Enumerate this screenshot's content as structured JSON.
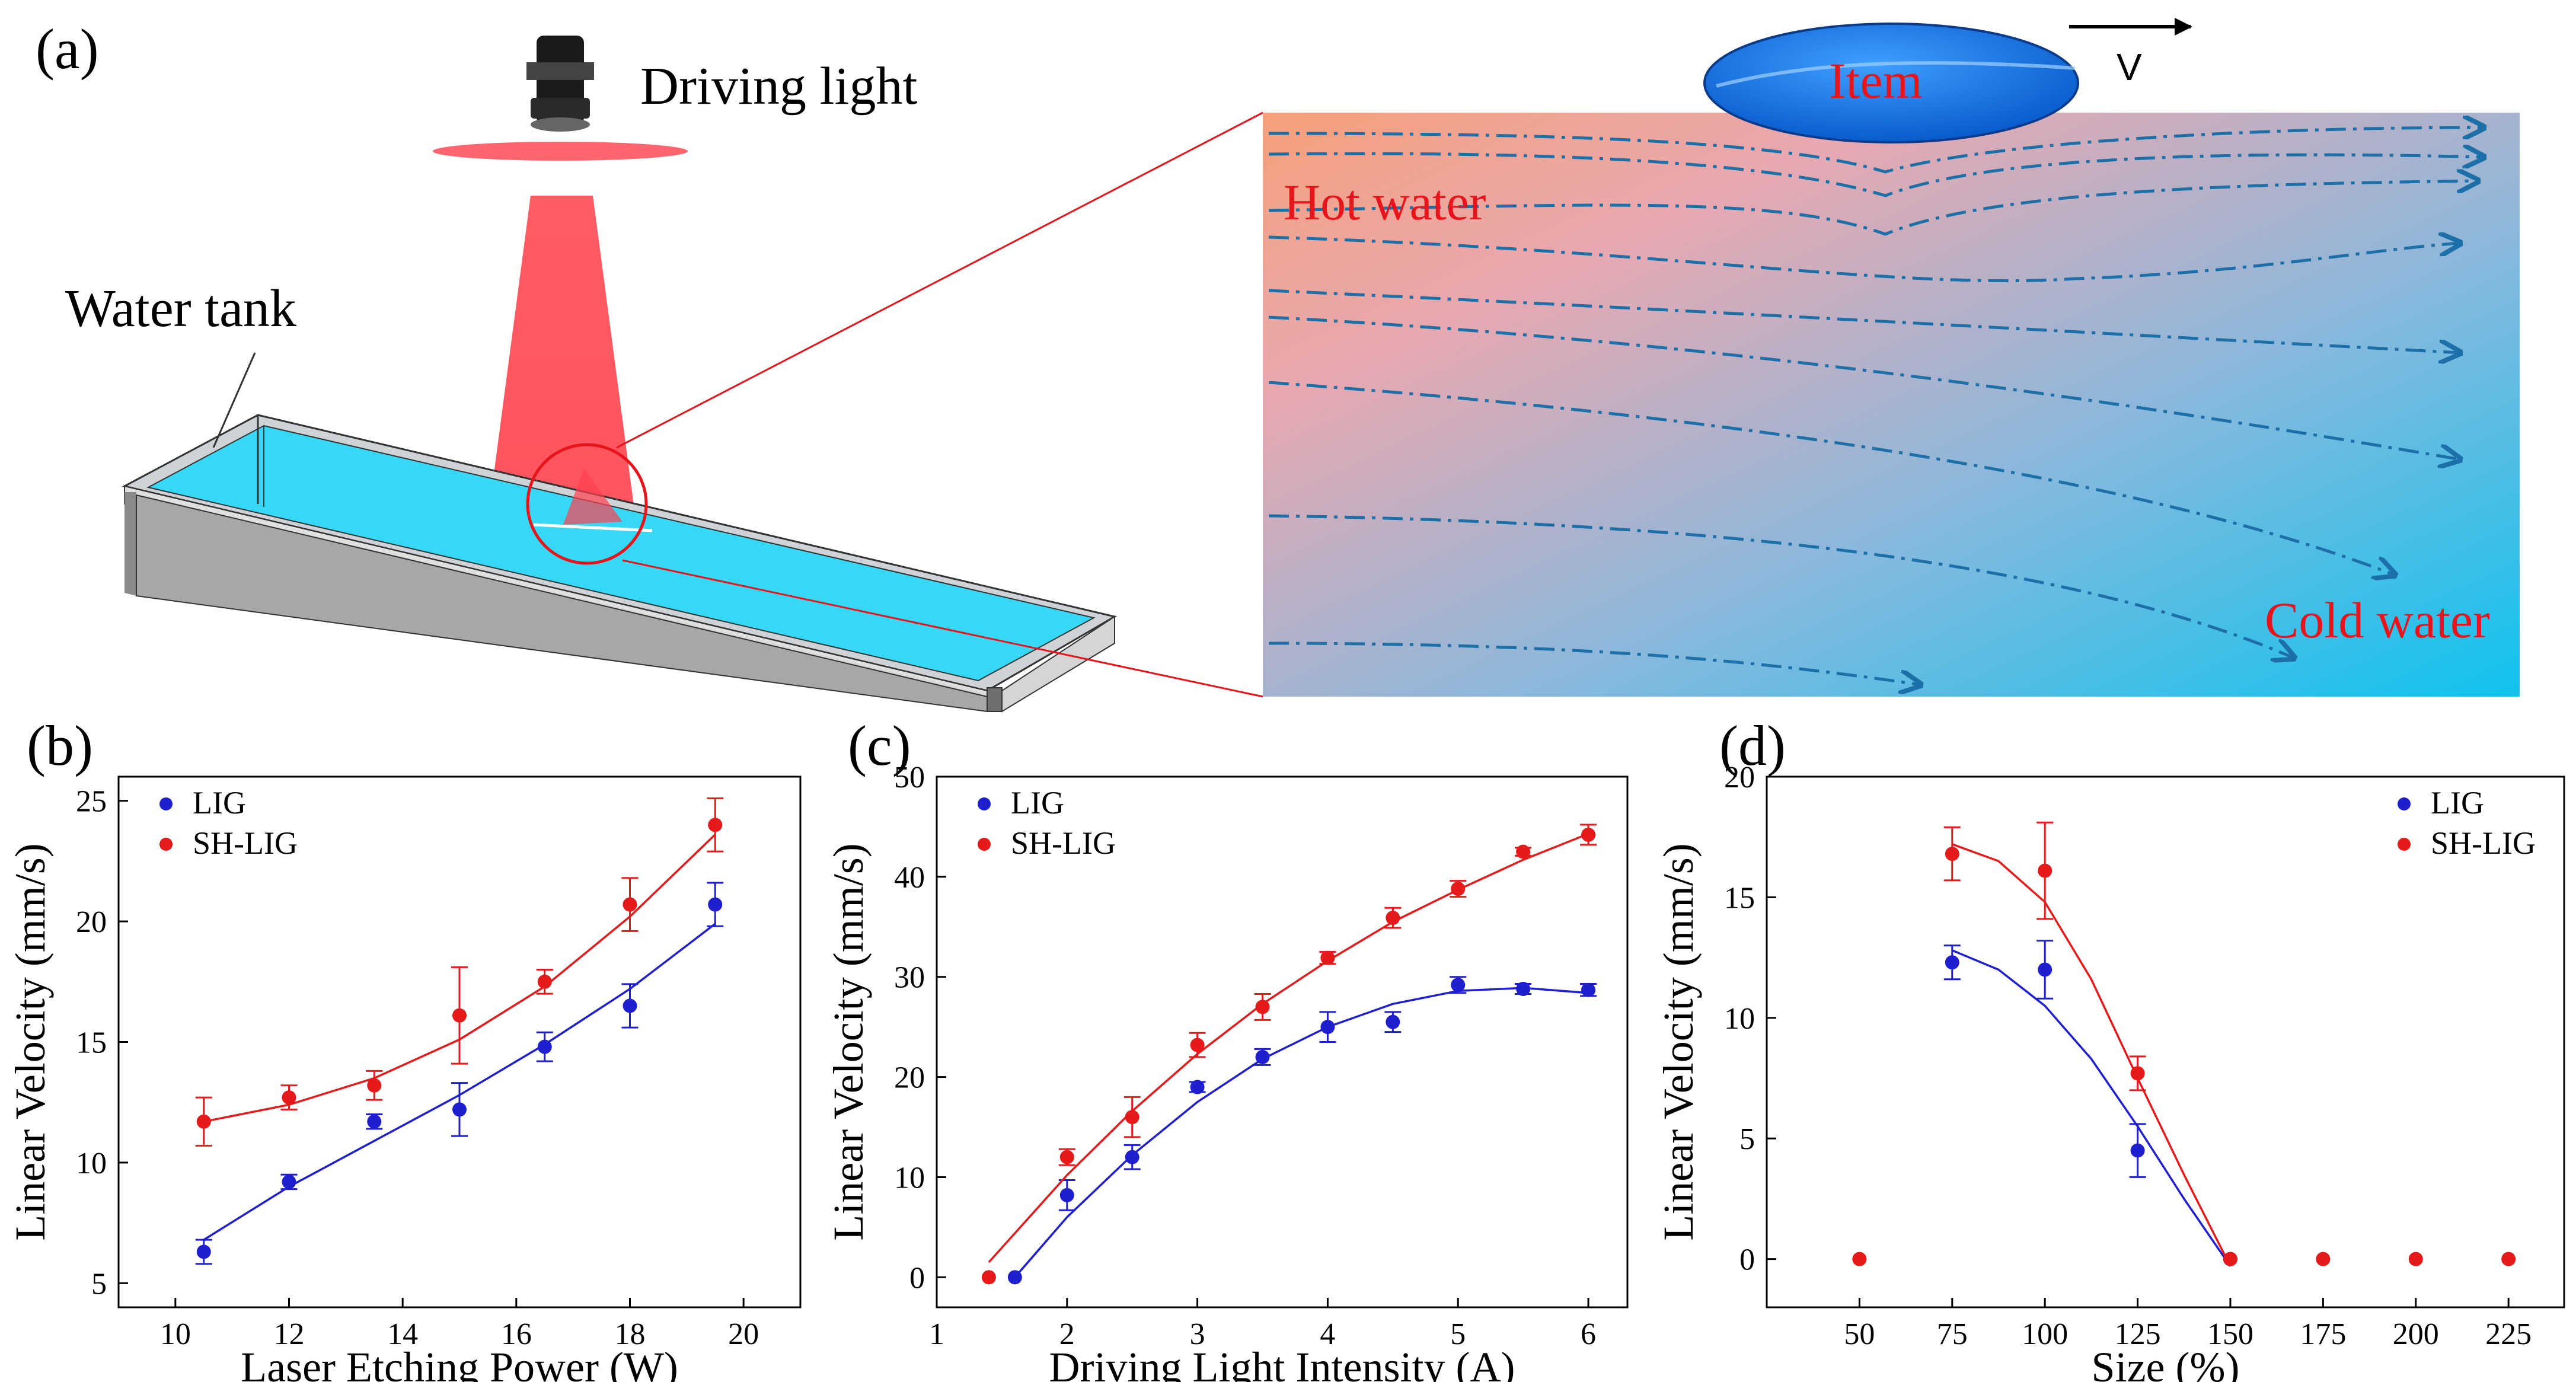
{
  "panel_a": {
    "label": "(a)",
    "driving_light": "Driving light",
    "water_tank": "Water tank",
    "item": "Item",
    "velocity": "V",
    "hot_water": "Hot water",
    "cold_water": "Cold water"
  },
  "chart_data": [
    {
      "panel": "(b)",
      "type": "scatter",
      "title": "",
      "xlabel": "Laser Etching Power (W)",
      "ylabel": "Linear Velocity (mm/s)",
      "xlim": [
        9,
        21
      ],
      "ylim": [
        4,
        26
      ],
      "xticks": [
        10,
        12,
        14,
        16,
        18,
        20
      ],
      "yticks": [
        5,
        10,
        15,
        20,
        25
      ],
      "legend_position": "top-left",
      "series": [
        {
          "name": "LIG",
          "color": "#1f1fd0",
          "x": [
            10.5,
            12,
            13.5,
            15,
            16.5,
            18,
            19.5
          ],
          "y": [
            6.3,
            9.2,
            11.7,
            12.2,
            14.8,
            16.5,
            20.7
          ],
          "err": [
            0.5,
            0.3,
            0.3,
            1.1,
            0.6,
            0.9,
            0.9
          ],
          "fit": [
            [
              10.5,
              6.8
            ],
            [
              12,
              9.0
            ],
            [
              13.5,
              10.9
            ],
            [
              15,
              12.8
            ],
            [
              16.5,
              14.9
            ],
            [
              18,
              17.2
            ],
            [
              19.5,
              19.9
            ]
          ]
        },
        {
          "name": "SH-LIG",
          "color": "#e51a1a",
          "x": [
            10.5,
            12,
            13.5,
            15,
            16.5,
            18,
            19.5
          ],
          "y": [
            11.7,
            12.7,
            13.2,
            16.1,
            17.5,
            20.7,
            24.0
          ],
          "err": [
            1.0,
            0.5,
            0.6,
            2.0,
            0.5,
            1.1,
            1.1
          ],
          "fit": [
            [
              10.5,
              11.7
            ],
            [
              12,
              12.4
            ],
            [
              13.5,
              13.5
            ],
            [
              15,
              15.1
            ],
            [
              16.5,
              17.3
            ],
            [
              18,
              20.2
            ],
            [
              19.5,
              23.6
            ]
          ]
        }
      ]
    },
    {
      "panel": "(c)",
      "type": "scatter",
      "title": "",
      "xlabel": "Driving Light Intensity (A)",
      "ylabel": "Linear Velocity (mm/s)",
      "xlim": [
        1,
        6.3
      ],
      "ylim": [
        -3,
        50
      ],
      "xticks": [
        1,
        2,
        3,
        4,
        5,
        6
      ],
      "yticks": [
        0,
        10,
        20,
        30,
        40,
        50
      ],
      "legend_position": "top-left",
      "series": [
        {
          "name": "LIG",
          "color": "#1f1fd0",
          "x": [
            1.6,
            2,
            2.5,
            3,
            3.5,
            4,
            4.5,
            5,
            5.5,
            6
          ],
          "y": [
            0,
            8.2,
            12.0,
            19.0,
            22.0,
            25.0,
            25.5,
            29.2,
            28.8,
            28.7
          ],
          "err": [
            0,
            1.5,
            1.2,
            0.5,
            0.8,
            1.5,
            1.0,
            0.8,
            0.5,
            0.6
          ],
          "fit": [
            [
              1.6,
              0.0
            ],
            [
              2,
              6.0
            ],
            [
              2.5,
              12.2
            ],
            [
              3,
              17.5
            ],
            [
              3.5,
              21.8
            ],
            [
              4,
              25.0
            ],
            [
              4.5,
              27.3
            ],
            [
              5,
              28.6
            ],
            [
              5.5,
              28.9
            ],
            [
              6,
              28.4
            ]
          ]
        },
        {
          "name": "SH-LIG",
          "color": "#e51a1a",
          "x": [
            1.4,
            2,
            2.5,
            3,
            3.5,
            4,
            4.5,
            5,
            5.5,
            6
          ],
          "y": [
            0,
            12.0,
            16.0,
            23.2,
            27.0,
            31.9,
            35.9,
            38.8,
            42.5,
            44.2
          ],
          "err": [
            0,
            0.8,
            2.0,
            1.2,
            1.3,
            0.6,
            1.0,
            0.8,
            0.4,
            1.0
          ],
          "fit": [
            [
              1.4,
              1.5
            ],
            [
              2,
              10.2
            ],
            [
              2.5,
              16.6
            ],
            [
              3,
              22.3
            ],
            [
              3.5,
              27.3
            ],
            [
              4,
              31.6
            ],
            [
              4.5,
              35.5
            ],
            [
              5,
              38.7
            ],
            [
              5.5,
              41.7
            ],
            [
              6,
              44.3
            ]
          ]
        }
      ]
    },
    {
      "panel": "(d)",
      "type": "scatter",
      "title": "",
      "xlabel": "Size (%)",
      "ylabel": "Linear Velocity (mm/s)",
      "xlim": [
        25,
        240
      ],
      "ylim": [
        -2,
        20
      ],
      "xticks": [
        50,
        75,
        100,
        125,
        150,
        175,
        200,
        225
      ],
      "yticks": [
        0,
        5,
        10,
        15,
        20
      ],
      "legend_position": "top-right",
      "series": [
        {
          "name": "LIG",
          "color": "#1f1fd0",
          "x": [
            75,
            100,
            125,
            150
          ],
          "y": [
            12.3,
            12.0,
            4.5,
            0
          ],
          "err": [
            0.7,
            1.2,
            1.1,
            0
          ],
          "fit": [
            [
              75,
              12.8
            ],
            [
              87.5,
              12.0
            ],
            [
              100,
              10.5
            ],
            [
              112.5,
              8.3
            ],
            [
              125,
              5.5
            ],
            [
              137.5,
              2.5
            ],
            [
              150,
              -0.3
            ]
          ]
        },
        {
          "name": "SH-LIG",
          "color": "#e51a1a",
          "x": [
            50,
            75,
            100,
            125,
            150,
            175,
            200,
            225
          ],
          "y": [
            0,
            16.8,
            16.1,
            7.7,
            0,
            0,
            0,
            0
          ],
          "err": [
            0,
            1.1,
            2.0,
            0.7,
            0,
            0,
            0,
            0
          ],
          "fit": [
            [
              75,
              17.2
            ],
            [
              87.5,
              16.5
            ],
            [
              100,
              14.8
            ],
            [
              112.5,
              11.6
            ],
            [
              125,
              7.5
            ],
            [
              137.5,
              3.5
            ],
            [
              150,
              -0.3
            ]
          ]
        }
      ]
    }
  ]
}
